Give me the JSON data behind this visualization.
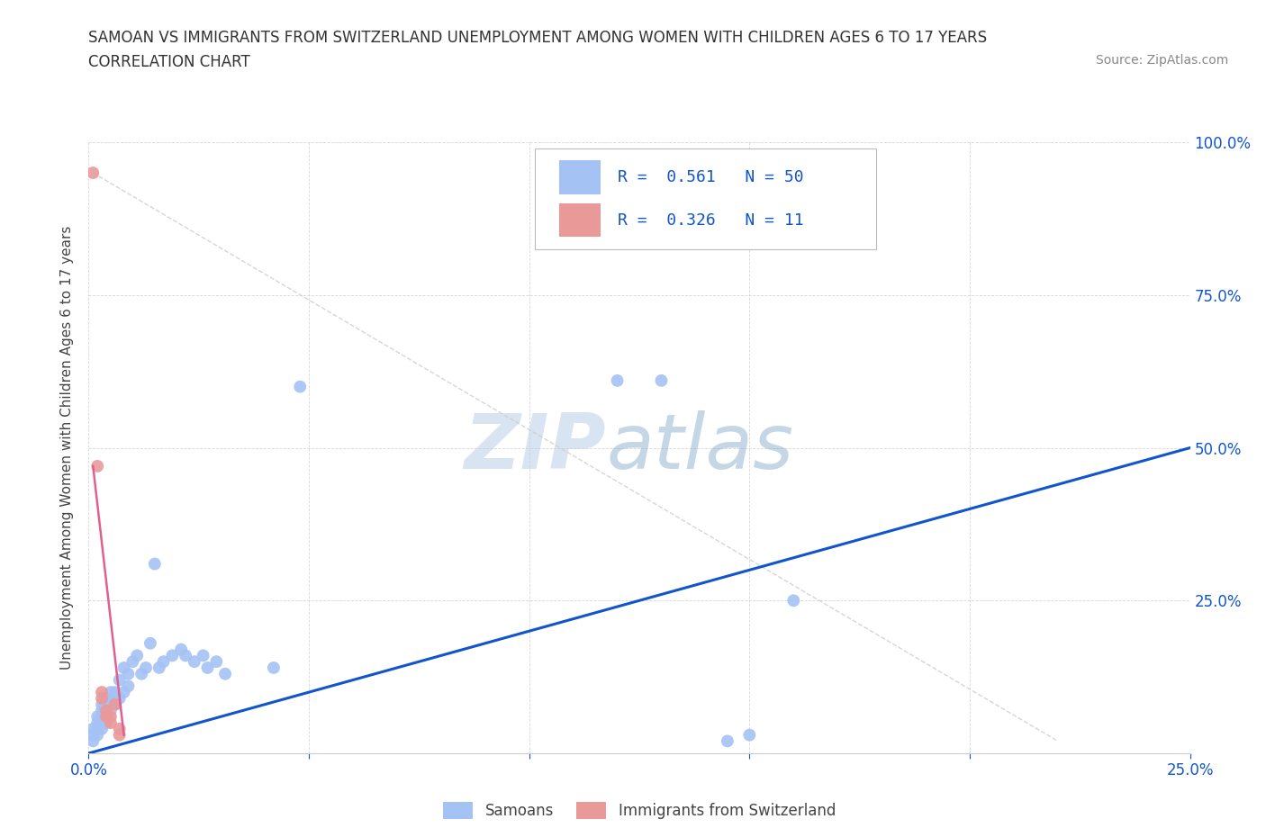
{
  "title_line1": "SAMOAN VS IMMIGRANTS FROM SWITZERLAND UNEMPLOYMENT AMONG WOMEN WITH CHILDREN AGES 6 TO 17 YEARS",
  "title_line2": "CORRELATION CHART",
  "source_text": "Source: ZipAtlas.com",
  "ylabel": "Unemployment Among Women with Children Ages 6 to 17 years",
  "xlim": [
    0.0,
    0.25
  ],
  "ylim": [
    0.0,
    1.0
  ],
  "background_color": "#ffffff",
  "watermark_ZIP": "ZIP",
  "watermark_atlas": "atlas",
  "blue_color": "#a4c2f4",
  "pink_color": "#ea9999",
  "blue_line_color": "#1155cc",
  "pink_line_color": "#e06090",
  "gray_line_color": "#cccccc",
  "R_blue": 0.561,
  "N_blue": 50,
  "R_pink": 0.326,
  "N_pink": 11,
  "tick_color": "#1155cc",
  "samoans_x": [
    0.001,
    0.001,
    0.001,
    0.002,
    0.002,
    0.002,
    0.002,
    0.003,
    0.003,
    0.003,
    0.003,
    0.003,
    0.004,
    0.004,
    0.004,
    0.004,
    0.005,
    0.005,
    0.005,
    0.006,
    0.006,
    0.007,
    0.007,
    0.008,
    0.008,
    0.009,
    0.009,
    0.01,
    0.011,
    0.012,
    0.013,
    0.014,
    0.015,
    0.016,
    0.017,
    0.019,
    0.021,
    0.022,
    0.024,
    0.026,
    0.027,
    0.029,
    0.031,
    0.042,
    0.048,
    0.12,
    0.13,
    0.145,
    0.15,
    0.16
  ],
  "samoans_y": [
    0.02,
    0.03,
    0.04,
    0.03,
    0.04,
    0.05,
    0.06,
    0.04,
    0.05,
    0.06,
    0.07,
    0.08,
    0.05,
    0.06,
    0.08,
    0.09,
    0.07,
    0.09,
    0.1,
    0.08,
    0.1,
    0.09,
    0.12,
    0.1,
    0.14,
    0.11,
    0.13,
    0.15,
    0.16,
    0.13,
    0.14,
    0.18,
    0.31,
    0.14,
    0.15,
    0.16,
    0.17,
    0.16,
    0.15,
    0.16,
    0.14,
    0.15,
    0.13,
    0.14,
    0.6,
    0.61,
    0.61,
    0.02,
    0.03,
    0.25
  ],
  "swiss_x": [
    0.001,
    0.002,
    0.003,
    0.003,
    0.004,
    0.004,
    0.005,
    0.005,
    0.006,
    0.007,
    0.007
  ],
  "swiss_y": [
    0.95,
    0.47,
    0.1,
    0.09,
    0.06,
    0.07,
    0.05,
    0.06,
    0.08,
    0.04,
    0.03
  ],
  "blue_trendline_x": [
    0.0,
    0.25
  ],
  "blue_trendline_y": [
    0.0,
    0.5
  ],
  "pink_trendline_x": [
    0.001,
    0.008
  ],
  "pink_trendline_y": [
    0.47,
    0.03
  ],
  "gray_trendline_x": [
    0.001,
    0.22
  ],
  "gray_trendline_y": [
    0.95,
    0.02
  ]
}
